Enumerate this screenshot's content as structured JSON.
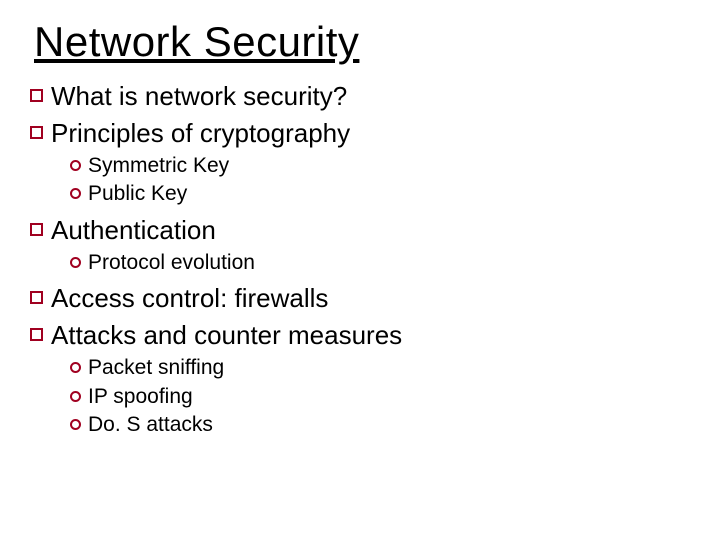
{
  "colors": {
    "bullet_border": "#a00020",
    "text": "#000000",
    "background": "#ffffff"
  },
  "typography": {
    "font_family": "Comic Sans MS",
    "title_fontsize_pt": 32,
    "level1_fontsize_pt": 20,
    "level2_fontsize_pt": 16
  },
  "title": "Network Security",
  "outline": [
    {
      "label": "What is network security?",
      "children": []
    },
    {
      "label": "Principles of cryptography",
      "children": [
        {
          "label": "Symmetric Key"
        },
        {
          "label": "Public Key"
        }
      ]
    },
    {
      "label": "Authentication",
      "children": [
        {
          "label": "Protocol evolution"
        }
      ]
    },
    {
      "label": "Access control: firewalls",
      "children": []
    },
    {
      "label": "Attacks and counter measures",
      "children": [
        {
          "label": "Packet sniffing"
        },
        {
          "label": "IP spoofing"
        },
        {
          "label": "Do. S attacks"
        }
      ]
    }
  ]
}
